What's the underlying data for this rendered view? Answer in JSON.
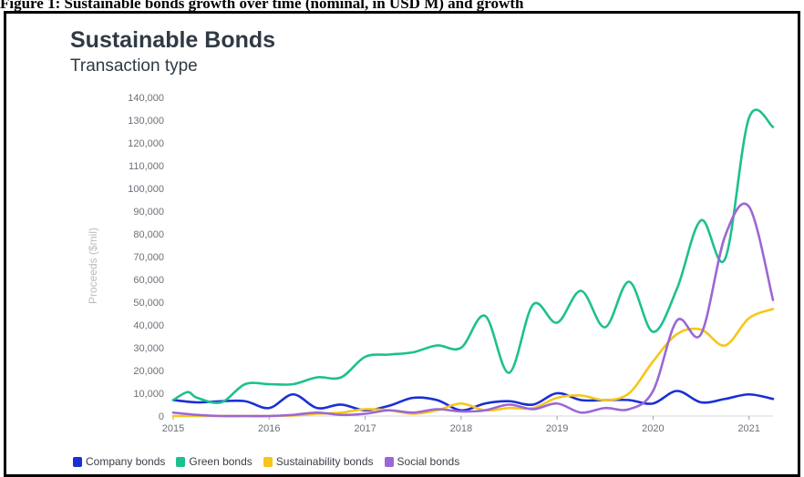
{
  "caption": "Figure 1: Sustainable bonds growth over time (nominal, in USD M) and growth",
  "chart_data": {
    "type": "line",
    "title": "Sustainable Bonds",
    "subtitle": "Transaction type",
    "ylabel": "Proceeds ($mil)",
    "xlabel": "",
    "xlim": [
      2015,
      2021.25
    ],
    "ylim": [
      0,
      140000
    ],
    "x_ticks": [
      "2015",
      "2016",
      "2017",
      "2018",
      "2019",
      "2020",
      "2021"
    ],
    "y_ticks": [
      "0",
      "10,000",
      "20,000",
      "30,000",
      "40,000",
      "50,000",
      "60,000",
      "70,000",
      "80,000",
      "90,000",
      "100,000",
      "110,000",
      "120,000",
      "130,000",
      "140,000"
    ],
    "grid": false,
    "legend": "bottom",
    "series": [
      {
        "name": "Company bonds",
        "color": "#1a2fd6",
        "x": [
          2015,
          2015.25,
          2015.5,
          2015.75,
          2016,
          2016.25,
          2016.5,
          2016.75,
          2017,
          2017.25,
          2017.5,
          2017.75,
          2018,
          2018.25,
          2018.5,
          2018.75,
          2019,
          2019.25,
          2019.5,
          2019.75,
          2020,
          2020.25,
          2020.5,
          2020.75,
          2021,
          2021.25
        ],
        "y": [
          7000,
          6000,
          6500,
          6500,
          3500,
          9500,
          3500,
          5000,
          2500,
          4500,
          8000,
          7000,
          2500,
          5500,
          6500,
          5000,
          10000,
          7000,
          7000,
          7000,
          5500,
          11000,
          6000,
          7500,
          9500,
          7500
        ]
      },
      {
        "name": "Green bonds",
        "color": "#1dc08f",
        "x": [
          2015,
          2015.15,
          2015.25,
          2015.5,
          2015.75,
          2016,
          2016.25,
          2016.5,
          2016.75,
          2017,
          2017.25,
          2017.5,
          2017.75,
          2018,
          2018.25,
          2018.5,
          2018.75,
          2019,
          2019.25,
          2019.5,
          2019.75,
          2020,
          2020.25,
          2020.5,
          2020.75,
          2021,
          2021.25
        ],
        "y": [
          7000,
          10500,
          8000,
          6000,
          14000,
          14000,
          14000,
          17000,
          17000,
          26000,
          27000,
          28000,
          31000,
          30000,
          44000,
          19000,
          49000,
          41000,
          55000,
          39000,
          59000,
          37000,
          56000,
          86000,
          69000,
          131000,
          127000
        ]
      },
      {
        "name": "Sustainability bonds",
        "color": "#f7c51c",
        "x": [
          2015,
          2015.25,
          2015.5,
          2015.75,
          2016,
          2016.25,
          2016.5,
          2016.75,
          2017,
          2017.25,
          2017.5,
          2017.75,
          2018,
          2018.25,
          2018.5,
          2018.75,
          2019,
          2019.25,
          2019.5,
          2019.75,
          2020,
          2020.25,
          2020.5,
          2020.75,
          2021,
          2021.25
        ],
        "y": [
          0,
          0,
          0,
          0,
          0,
          200,
          1000,
          1500,
          3000,
          2500,
          1000,
          2500,
          5500,
          2500,
          3500,
          3500,
          8000,
          9000,
          7000,
          10000,
          24000,
          36000,
          38000,
          31000,
          43000,
          47000
        ]
      },
      {
        "name": "Social bonds",
        "color": "#9b67d4",
        "x": [
          2015,
          2015.25,
          2015.5,
          2015.75,
          2016,
          2016.25,
          2016.5,
          2016.75,
          2017,
          2017.25,
          2017.5,
          2017.75,
          2018,
          2018.25,
          2018.5,
          2018.75,
          2019,
          2019.25,
          2019.5,
          2019.75,
          2020,
          2020.25,
          2020.5,
          2020.75,
          2021,
          2021.25
        ],
        "y": [
          1500,
          500,
          0,
          0,
          0,
          500,
          1500,
          500,
          1000,
          2500,
          1500,
          3000,
          2000,
          2500,
          5000,
          3000,
          5500,
          1500,
          3500,
          3000,
          11000,
          42000,
          36000,
          79000,
          92000,
          51000
        ]
      }
    ]
  }
}
